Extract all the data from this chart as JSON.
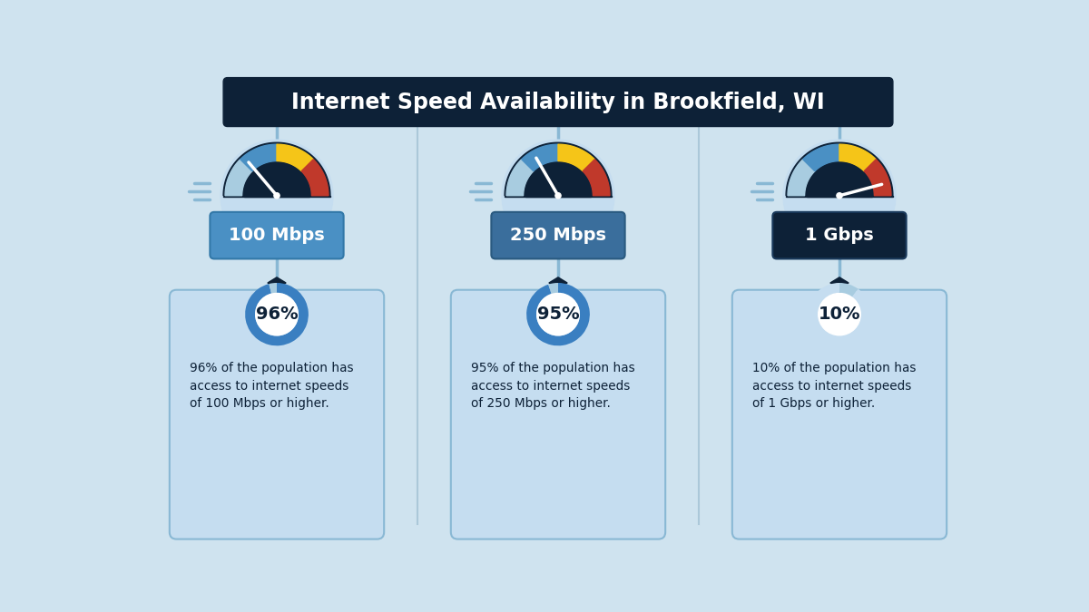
{
  "title": "Internet Speed Availability in Brookfield, WI",
  "title_bg": "#0d2137",
  "bg_color": "#cfe3ef",
  "card_bg": "#c5ddf0",
  "card_border": "#89b8d4",
  "col_divider": "#89aec4",
  "speeds": [
    "100 Mbps",
    "250 Mbps",
    "1 Gbps"
  ],
  "percentages": [
    96,
    95,
    10
  ],
  "needle_angles": [
    130,
    120,
    15
  ],
  "descriptions": [
    "96% of the population has\naccess to internet speeds\nof 100 Mbps or higher.",
    "95% of the population has\naccess to internet speeds\nof 250 Mbps or higher.",
    "10% of the population has\naccess to internet speeds\nof 1 Gbps or higher."
  ],
  "speed_box_colors": [
    "#4a90c4",
    "#3a6e9c",
    "#0d2137"
  ],
  "speed_box_borders": [
    "#3278a8",
    "#2a5a80",
    "#1a3a5c"
  ],
  "gauge_dark": "#0d2137",
  "gauge_light_blue": "#a8cce0",
  "gauge_blue": "#4a90c4",
  "gauge_yellow": "#f5c518",
  "gauge_red": "#c0392b",
  "donut_colors": [
    "#3a7fc1",
    "#3a7fc1",
    "#a8cce0"
  ],
  "donut_light_colors": [
    "#a8cce0",
    "#a8cce0",
    "#c5ddf0"
  ],
  "connector_color": "#89b8d4",
  "dark": "#0d2137",
  "speed_line_color": "#89b8d4",
  "cols": [
    2.0,
    6.0,
    10.0
  ]
}
